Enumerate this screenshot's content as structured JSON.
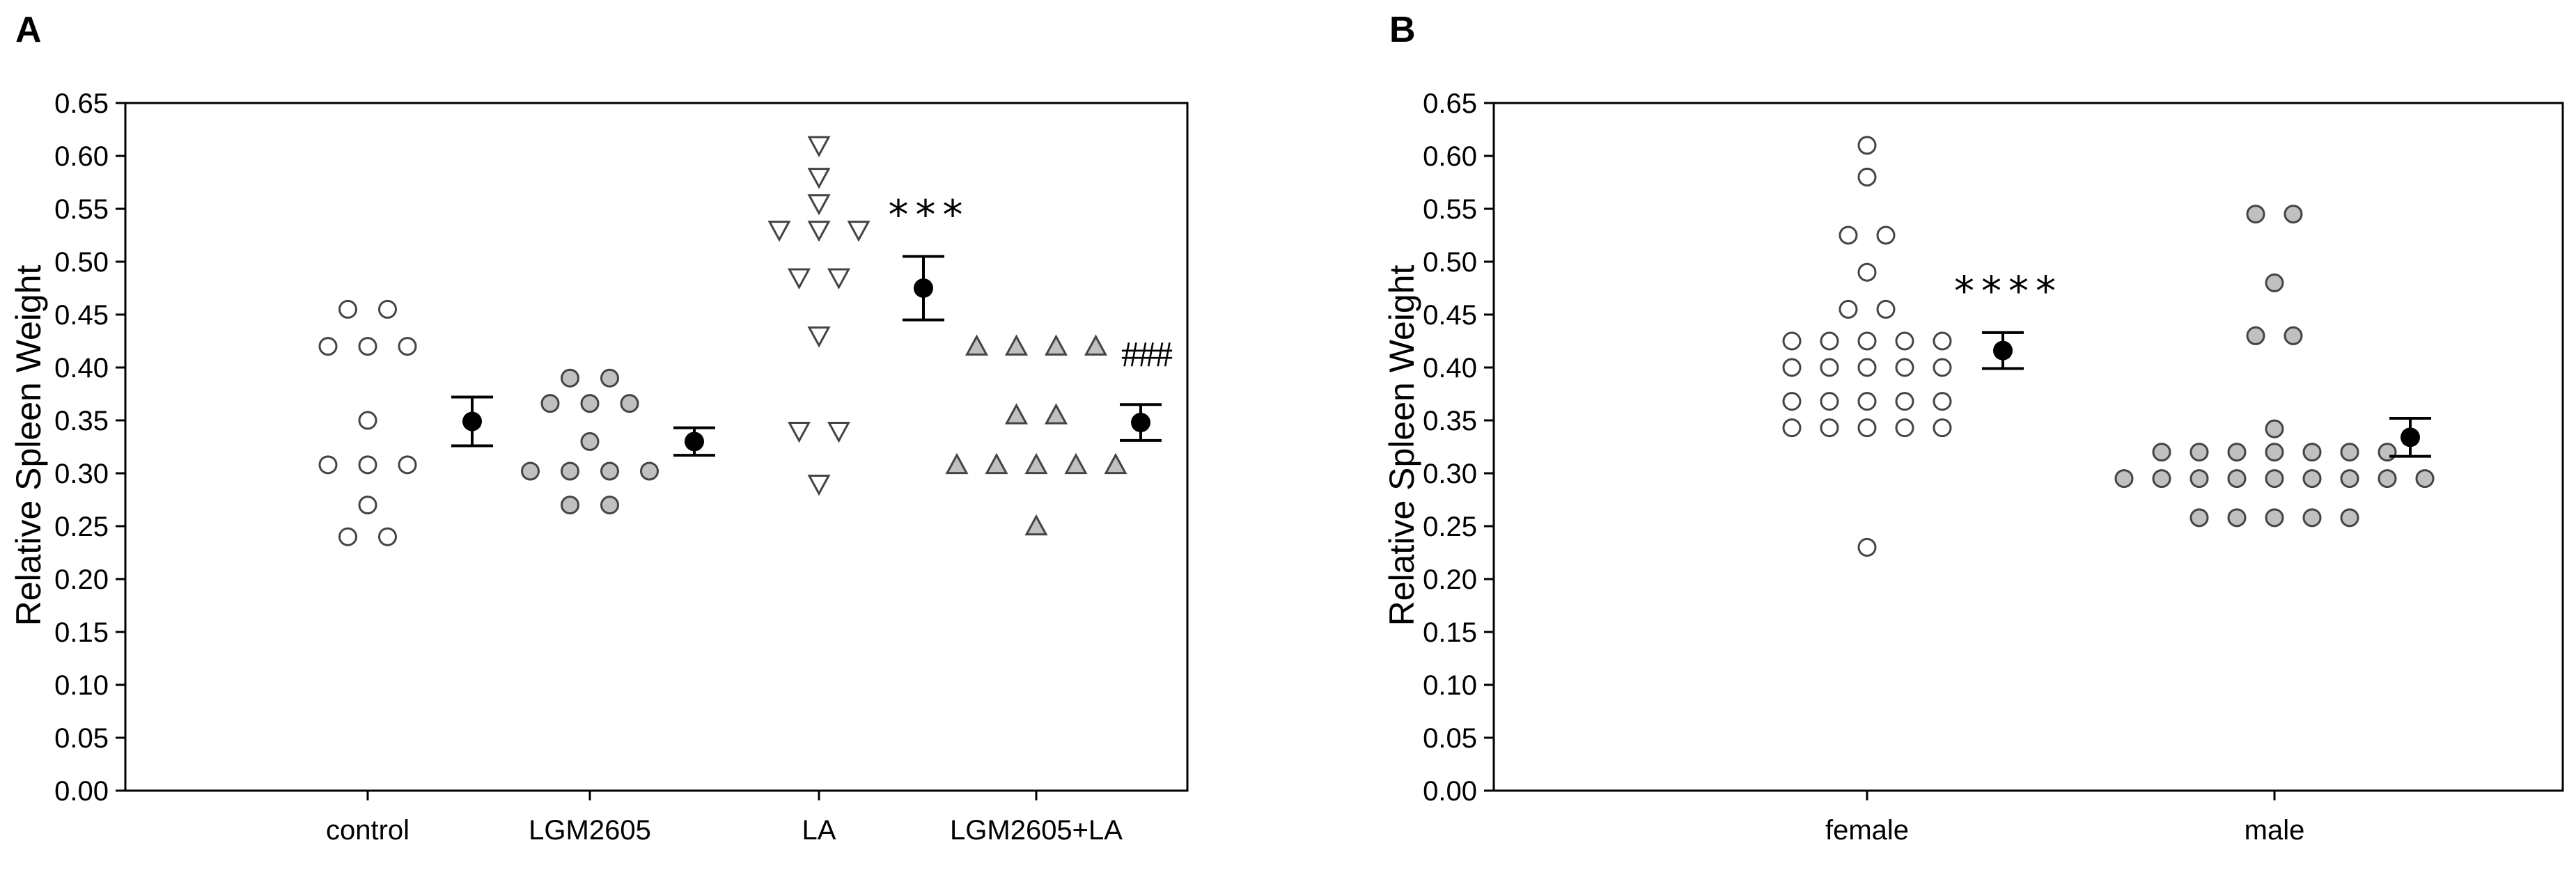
{
  "chart_data": [
    {
      "type": "scatter",
      "panel_label": "A",
      "ylabel": "Relative Spleen Weight",
      "xlabel": "",
      "ylim": [
        0,
        0.65
      ],
      "yticks": [
        "0.00",
        "0.05",
        "0.10",
        "0.15",
        "0.20",
        "0.25",
        "0.30",
        "0.35",
        "0.40",
        "0.45",
        "0.50",
        "0.55",
        "0.60",
        "0.65"
      ],
      "grid": false,
      "categories": [
        "control",
        "LGM2605",
        "LA",
        "LGM2605+LA"
      ],
      "groups": [
        {
          "category": "control",
          "marker": "circle-open",
          "fill": "#ffffff",
          "values": [
            0.455,
            0.455,
            0.42,
            0.42,
            0.42,
            0.35,
            0.308,
            0.308,
            0.308,
            0.27,
            0.24,
            0.24
          ],
          "mean": 0.349,
          "err_low": 0.326,
          "err_high": 0.372,
          "annotation": ""
        },
        {
          "category": "LGM2605",
          "marker": "circle-filled",
          "fill": "#c0c0c0",
          "values": [
            0.39,
            0.39,
            0.366,
            0.366,
            0.366,
            0.33,
            0.302,
            0.302,
            0.302,
            0.302,
            0.27,
            0.27
          ],
          "mean": 0.33,
          "err_low": 0.317,
          "err_high": 0.343,
          "annotation": ""
        },
        {
          "category": "LA",
          "marker": "triangle-down-open",
          "fill": "#ffffff",
          "values": [
            0.61,
            0.58,
            0.555,
            0.53,
            0.53,
            0.53,
            0.485,
            0.485,
            0.43,
            0.34,
            0.34,
            0.29
          ],
          "mean": 0.475,
          "err_low": 0.445,
          "err_high": 0.505,
          "annotation": "***"
        },
        {
          "category": "LGM2605+LA",
          "marker": "triangle-up-filled",
          "fill": "#c0c0c0",
          "values": [
            0.42,
            0.42,
            0.42,
            0.42,
            0.355,
            0.355,
            0.308,
            0.308,
            0.308,
            0.308,
            0.308,
            0.25
          ],
          "mean": 0.348,
          "err_low": 0.331,
          "err_high": 0.365,
          "annotation": "###"
        }
      ]
    },
    {
      "type": "scatter",
      "panel_label": "B",
      "ylabel": "Relative Spleen Weight",
      "xlabel": "",
      "ylim": [
        0,
        0.65
      ],
      "yticks": [
        "0.00",
        "0.05",
        "0.10",
        "0.15",
        "0.20",
        "0.25",
        "0.30",
        "0.35",
        "0.40",
        "0.45",
        "0.50",
        "0.55",
        "0.60",
        "0.65"
      ],
      "grid": false,
      "categories": [
        "female",
        "male"
      ],
      "groups": [
        {
          "category": "female",
          "marker": "circle-open",
          "fill": "#ffffff",
          "values": [
            0.61,
            0.58,
            0.525,
            0.525,
            0.49,
            0.455,
            0.455,
            0.425,
            0.425,
            0.425,
            0.425,
            0.425,
            0.4,
            0.4,
            0.4,
            0.4,
            0.4,
            0.368,
            0.368,
            0.368,
            0.368,
            0.368,
            0.343,
            0.343,
            0.343,
            0.343,
            0.343,
            0.23
          ],
          "mean": 0.416,
          "err_low": 0.399,
          "err_high": 0.433,
          "annotation": "****"
        },
        {
          "category": "male",
          "marker": "circle-filled",
          "fill": "#c0c0c0",
          "values": [
            0.545,
            0.545,
            0.48,
            0.43,
            0.43,
            0.342,
            0.32,
            0.32,
            0.32,
            0.32,
            0.32,
            0.32,
            0.32,
            0.295,
            0.295,
            0.295,
            0.295,
            0.295,
            0.295,
            0.295,
            0.295,
            0.295,
            0.258,
            0.258,
            0.258,
            0.258,
            0.258
          ],
          "mean": 0.334,
          "err_low": 0.316,
          "err_high": 0.352,
          "annotation": ""
        }
      ]
    }
  ]
}
